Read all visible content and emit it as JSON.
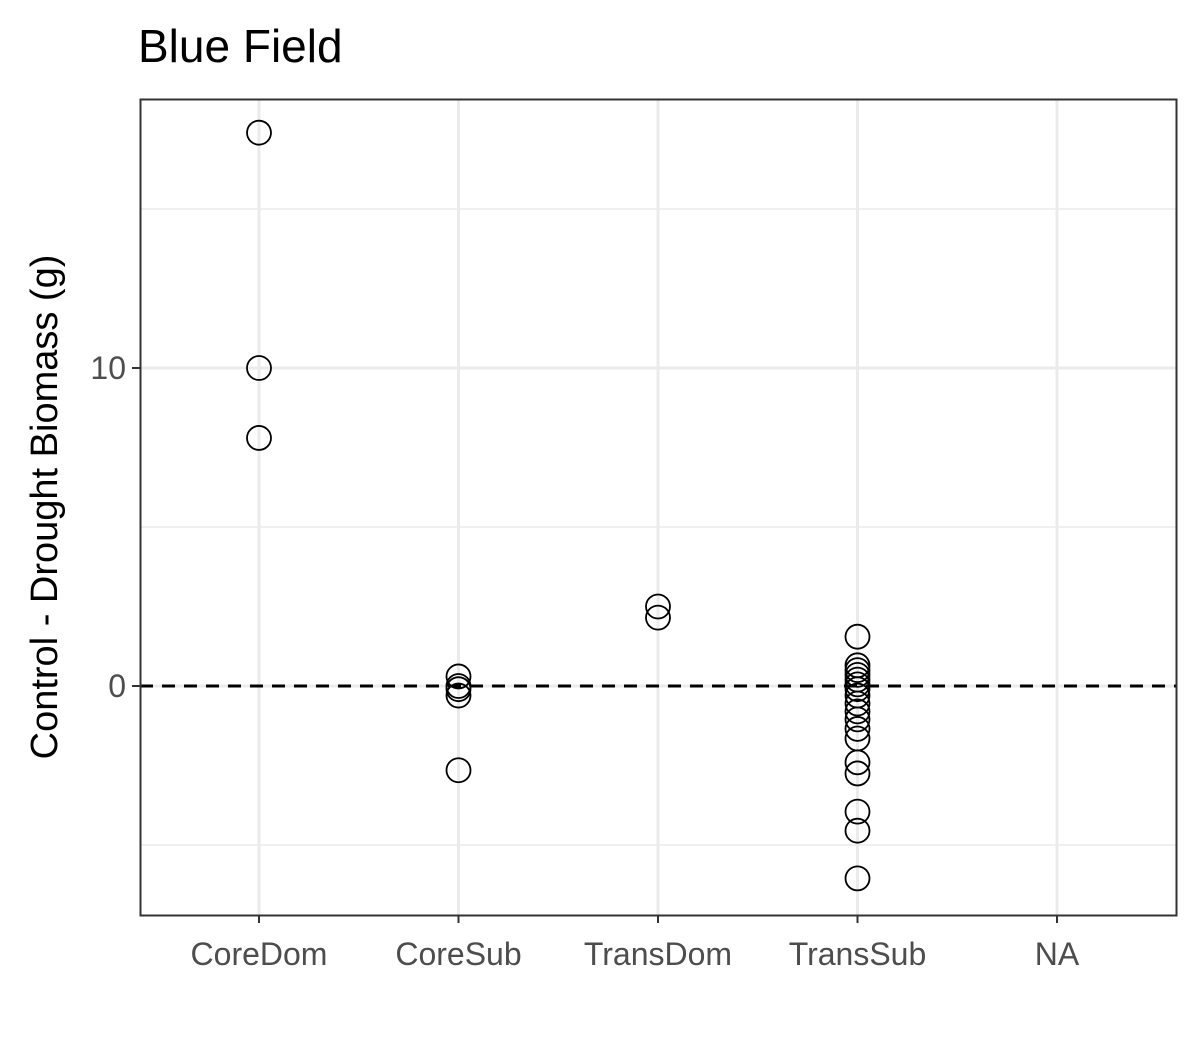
{
  "chart_data": {
    "type": "scatter",
    "title": "Blue Field",
    "xlabel": "",
    "ylabel": "Control - Drought Biomass (g)",
    "categories": [
      "CoreDom",
      "CoreSub",
      "TransDom",
      "TransSub",
      "NA"
    ],
    "y_ticks": [
      {
        "value": 0,
        "label": "0"
      },
      {
        "value": 10,
        "label": "10"
      }
    ],
    "y_minor_gridlines": [
      -5,
      5,
      15
    ],
    "ylim": [
      -7.2,
      18.5
    ],
    "reference_line": {
      "y": 0,
      "style": "dashed",
      "color": "#000000"
    },
    "grid": true,
    "marker": {
      "shape": "open-circle",
      "color": "#000000"
    },
    "points": [
      {
        "category": "CoreDom",
        "y": 17.4
      },
      {
        "category": "CoreDom",
        "y": 10.0
      },
      {
        "category": "CoreDom",
        "y": 7.8
      },
      {
        "category": "CoreSub",
        "y": 0.3
      },
      {
        "category": "CoreSub",
        "y": 0.0
      },
      {
        "category": "CoreSub",
        "y": -0.1
      },
      {
        "category": "CoreSub",
        "y": -0.3
      },
      {
        "category": "CoreSub",
        "y": -2.65
      },
      {
        "category": "TransDom",
        "y": 2.5
      },
      {
        "category": "TransDom",
        "y": 2.15
      },
      {
        "category": "TransSub",
        "y": 1.55
      },
      {
        "category": "TransSub",
        "y": 0.65
      },
      {
        "category": "TransSub",
        "y": 0.5
      },
      {
        "category": "TransSub",
        "y": 0.35
      },
      {
        "category": "TransSub",
        "y": 0.2
      },
      {
        "category": "TransSub",
        "y": 0.05
      },
      {
        "category": "TransSub",
        "y": -0.1
      },
      {
        "category": "TransSub",
        "y": -0.3
      },
      {
        "category": "TransSub",
        "y": -0.55
      },
      {
        "category": "TransSub",
        "y": -0.8
      },
      {
        "category": "TransSub",
        "y": -1.05
      },
      {
        "category": "TransSub",
        "y": -1.35
      },
      {
        "category": "TransSub",
        "y": -1.65
      },
      {
        "category": "TransSub",
        "y": -2.4
      },
      {
        "category": "TransSub",
        "y": -2.75
      },
      {
        "category": "TransSub",
        "y": -3.95
      },
      {
        "category": "TransSub",
        "y": -4.55
      },
      {
        "category": "TransSub",
        "y": -6.05
      }
    ]
  }
}
